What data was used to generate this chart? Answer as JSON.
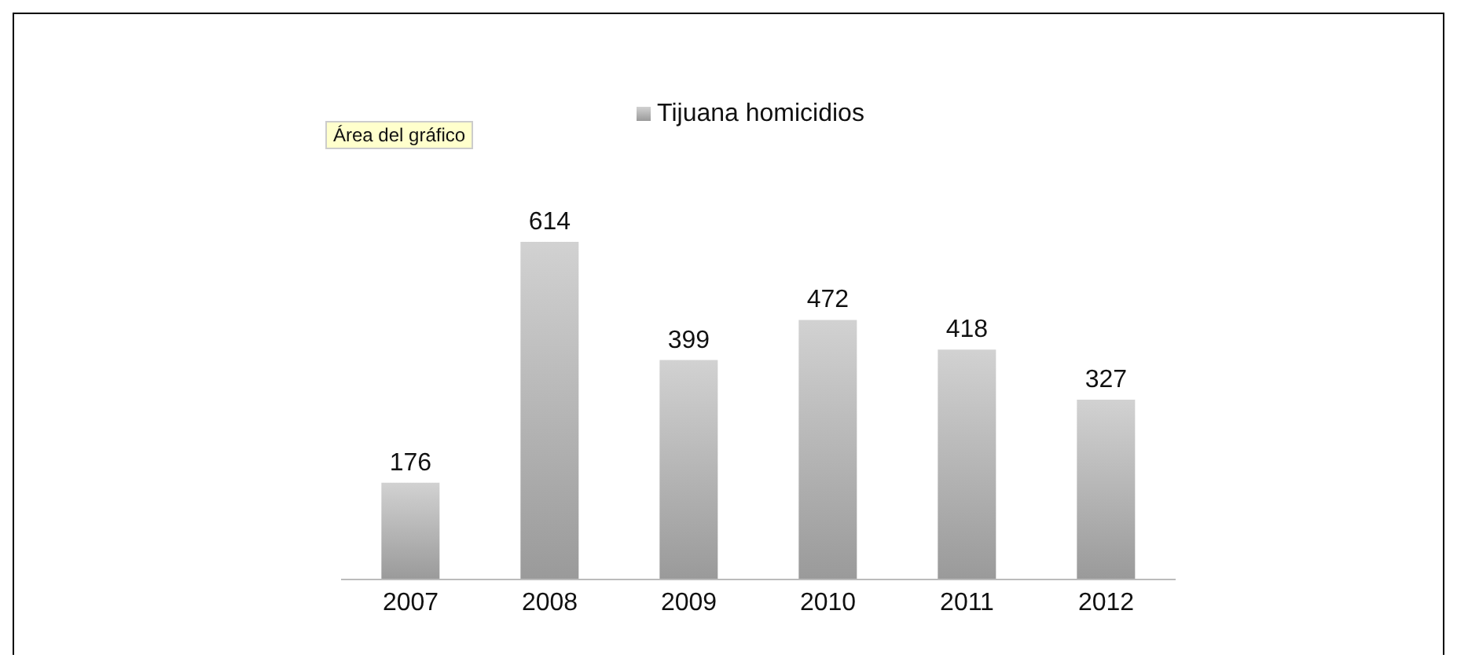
{
  "chart_data": {
    "type": "bar",
    "categories": [
      "2007",
      "2008",
      "2009",
      "2010",
      "2011",
      "2012"
    ],
    "series": [
      {
        "name": "Tijuana homicidios",
        "color": "#9a9a9a",
        "values": [
          176,
          614,
          399,
          472,
          418,
          327
        ]
      }
    ],
    "data_labels": true,
    "legend": "top",
    "annotations": [
      "Área del gráfico"
    ]
  }
}
